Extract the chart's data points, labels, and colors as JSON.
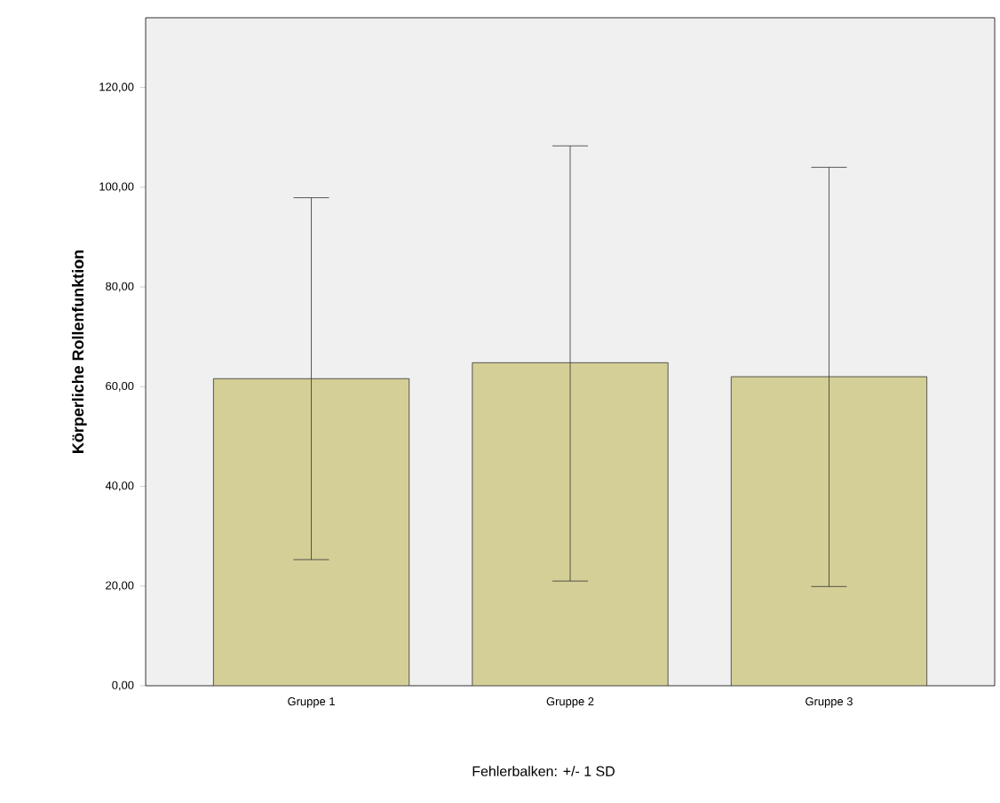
{
  "chart_data": {
    "type": "bar",
    "ylabel": "Körperliche Rollenfunktion",
    "categories": [
      "Gruppe 1",
      "Gruppe 2",
      "Gruppe 3"
    ],
    "values": [
      61.6,
      64.8,
      62.0
    ],
    "errors": [
      [
        25.3,
        97.9
      ],
      [
        21.0,
        108.3
      ],
      [
        19.9,
        104.0
      ]
    ],
    "color": "#d4cf97",
    "ylim": [
      0,
      134
    ],
    "yticks": [
      {
        "value": 0,
        "label": "0,00"
      },
      {
        "value": 20,
        "label": "20,00"
      },
      {
        "value": 40,
        "label": "40,00"
      },
      {
        "value": 60,
        "label": "60,00"
      },
      {
        "value": 80,
        "label": "80,00"
      },
      {
        "value": 100,
        "label": "100,00"
      },
      {
        "value": 120,
        "label": "120,00"
      }
    ],
    "grid": false,
    "annotations": [
      "Fehlerbalken: +/- 1 SD"
    ]
  }
}
